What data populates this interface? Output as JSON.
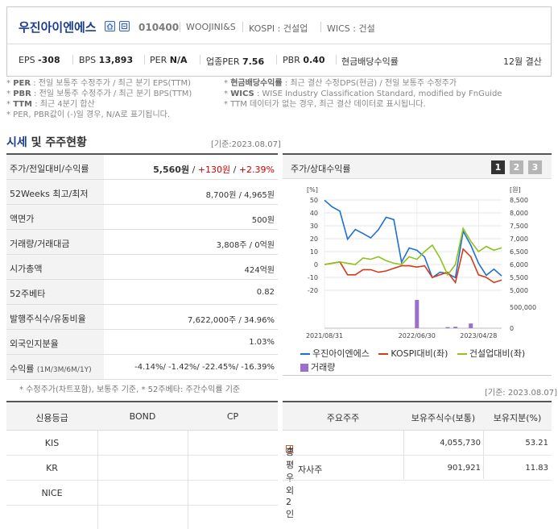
{
  "company": {
    "name": "우진아이엔에스",
    "code": "010400",
    "eng_name": "WOOJINI&S",
    "market": "KOSPI : 건설업",
    "wics": "WICS : 건설"
  },
  "stats": {
    "eps_label": "EPS",
    "eps": "-308",
    "bps_label": "BPS",
    "bps": "13,893",
    "per_label": "PER",
    "per": "N/A",
    "sector_per_label": "업종PER",
    "sector_per": "7.56",
    "pbr_label": "PBR",
    "pbr": "0.40",
    "dividend_label": "현금배당수익률",
    "settlement": "12월 결산"
  },
  "notes": {
    "per_key": "PER",
    "per_text": ": 전일 보통주 수정주가 / 최근 분기 EPS(TTM)",
    "pbr_key": "PBR",
    "pbr_text": ": 전일 보통주 수정주가 / 최근 분기 BPS(TTM)",
    "ttm_key": "TTM",
    "ttm_text": ": 최근 4분기 합산",
    "per_pbr_text": "* PER, PBR값이 (-)일 경우, N/A로 표기됩니다.",
    "div_key": "현금배당수익률",
    "div_text": ": 최근 결산 수정DPS(현금) / 전일 보통주 수정주가",
    "wics_key": "WICS",
    "wics_text": ": WISE Industry Classification Standard, modified by FnGuide",
    "ttm_nodata_text": "* TTM 데이터가 없는 경우, 최근 결산 데이터로 표시됩니다."
  },
  "market_section": {
    "title_blue": "시세",
    "title_rest": " 및 주주현황",
    "asof": "[기준:2023.08.07]",
    "rows": [
      {
        "key": "주가/전일대비/수익률"
      },
      {
        "key": "52Weeks 최고/최저",
        "value": "8,700원 / 4,965원"
      },
      {
        "key": "액면가",
        "value": "500원"
      },
      {
        "key": "거래량/거래대금",
        "value": "3,808주 / 0억원"
      },
      {
        "key": "시가총액",
        "value": "424억원"
      },
      {
        "key": "52주베타",
        "value": "0.82"
      },
      {
        "key": "발행주식수/유동비율",
        "value": "7,622,000주 / 34.96%"
      },
      {
        "key": "외국인지분율",
        "value": "1.03%"
      },
      {
        "key": "수익률",
        "key_small": "(1M/3M/6M/1Y)"
      }
    ],
    "price": "5,560원",
    "change": "+130원",
    "change_pct": "+2.39%",
    "returns": "-4.14%/ -1.42%/ -22.45%/ -16.39%",
    "foot_note": "* 수정주가(차트포함), 보통주 기준, * 52주베타: 주간수익률 기준"
  },
  "chart_panel": {
    "title": "주가/상대수익률",
    "pages": [
      "1",
      "2",
      "3"
    ],
    "asof": "[기준: 2023.08.07]"
  },
  "chart_data": {
    "type": "line",
    "left_axis_label": "[%]",
    "right_axis_label": "[원]",
    "left_ticks": [
      "50",
      "40",
      "30",
      "20",
      "10",
      "0",
      "-10",
      "-20"
    ],
    "right_ticks": [
      "8,500",
      "8,000",
      "7,500",
      "7,000",
      "6,500",
      "6,000",
      "5,500",
      "5,000"
    ],
    "volume_ticks": [
      "500,000",
      "0"
    ],
    "x_ticks": [
      "2021/08/31",
      "2022/06/30",
      "2023/04/28"
    ],
    "ylim_left": [
      -20,
      50
    ],
    "ylim_right": [
      5000,
      8500
    ],
    "series": [
      {
        "name": "우진아이엔에스",
        "axis": "right",
        "color": "#1f6fd1",
        "values": [
          8490,
          8230,
          8070,
          6980,
          7360,
          7200,
          7030,
          7350,
          7830,
          7740,
          6090,
          6640,
          6550,
          6290,
          5490,
          5700,
          5650,
          5490,
          7290,
          6750,
          6050,
          5580,
          5820,
          5560
        ]
      },
      {
        "name": "KOSPI대비(좌)",
        "axis": "left",
        "color": "#d23c1b",
        "values": [
          0,
          1,
          2,
          -8,
          -8,
          -4,
          -4,
          -6,
          -5,
          -3,
          -1,
          -1,
          -2,
          -1,
          -10,
          -8,
          -6,
          -14,
          12,
          6,
          -8,
          -10,
          -14,
          -12
        ]
      },
      {
        "name": "건설업대비(좌)",
        "axis": "left",
        "color": "#8ec21e",
        "values": [
          0,
          1,
          2,
          1,
          0,
          5,
          4,
          6,
          3,
          1,
          0,
          6,
          4,
          10,
          15,
          5,
          -8,
          0,
          28,
          18,
          10,
          14,
          11,
          13
        ]
      },
      {
        "name": "거래량",
        "axis": "volume",
        "color": "#9b6fcc",
        "values": [
          0,
          0,
          0,
          0,
          0,
          0,
          0,
          0,
          0,
          0,
          0,
          0,
          780000,
          0,
          0,
          0,
          30000,
          40000,
          0,
          130000,
          0,
          0,
          0,
          0
        ]
      }
    ]
  },
  "credit": {
    "headers": [
      "신용등급",
      "BOND",
      "CP"
    ],
    "rows": [
      "KIS",
      "KR",
      "NICE"
    ]
  },
  "holders": {
    "headers": [
      "주요주주",
      "보유주식수(보통)",
      "보유지분(%)"
    ],
    "rows": [
      {
        "name": "홍평우 외 2인",
        "shares": "4,055,730",
        "pct": "53.21"
      },
      {
        "name": "자사주",
        "shares": "901,921",
        "pct": "11.83"
      }
    ]
  }
}
